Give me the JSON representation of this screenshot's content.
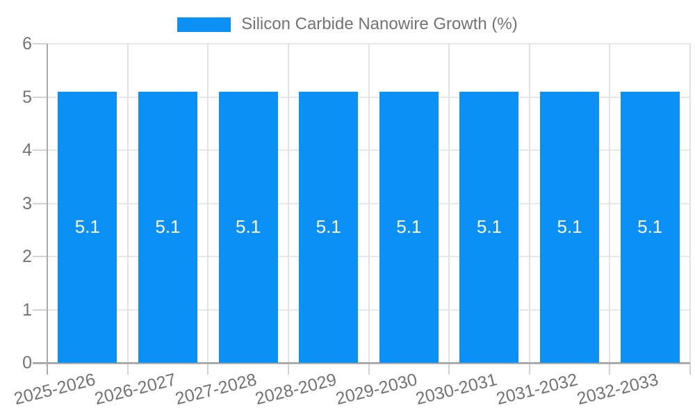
{
  "chart_data": {
    "type": "bar",
    "title": "",
    "xlabel": "",
    "ylabel": "",
    "legend": {
      "label": "Silicon Carbide Nanowire Growth (%)",
      "position": "top"
    },
    "categories": [
      "2025-2026",
      "2026-2027",
      "2027-2028",
      "2028-2029",
      "2029-2030",
      "2030-2031",
      "2031-2032",
      "2032-2033"
    ],
    "series": [
      {
        "name": "Silicon Carbide Nanowire Growth (%)",
        "values": [
          5.1,
          5.1,
          5.1,
          5.1,
          5.1,
          5.1,
          5.1,
          5.1
        ],
        "bar_labels": [
          "5.1",
          "5.1",
          "5.1",
          "5.1",
          "5.1",
          "5.1",
          "5.1",
          "5.1"
        ]
      }
    ],
    "ylim": [
      0,
      6
    ],
    "yticks": [
      "0",
      "1",
      "2",
      "3",
      "4",
      "5",
      "6"
    ],
    "grid": true,
    "x_label_rotation_deg": -14,
    "colors": {
      "bar": "#0b90f6",
      "grid": "#e7e7e7",
      "vertical_grid": "#e2e2e2",
      "tick": "#d2d2d2",
      "axis": "#ababab",
      "tick_label": "#737373",
      "legend_label": "#737373",
      "bar_value_label": "#ffffff",
      "background": "#ffffff"
    }
  }
}
